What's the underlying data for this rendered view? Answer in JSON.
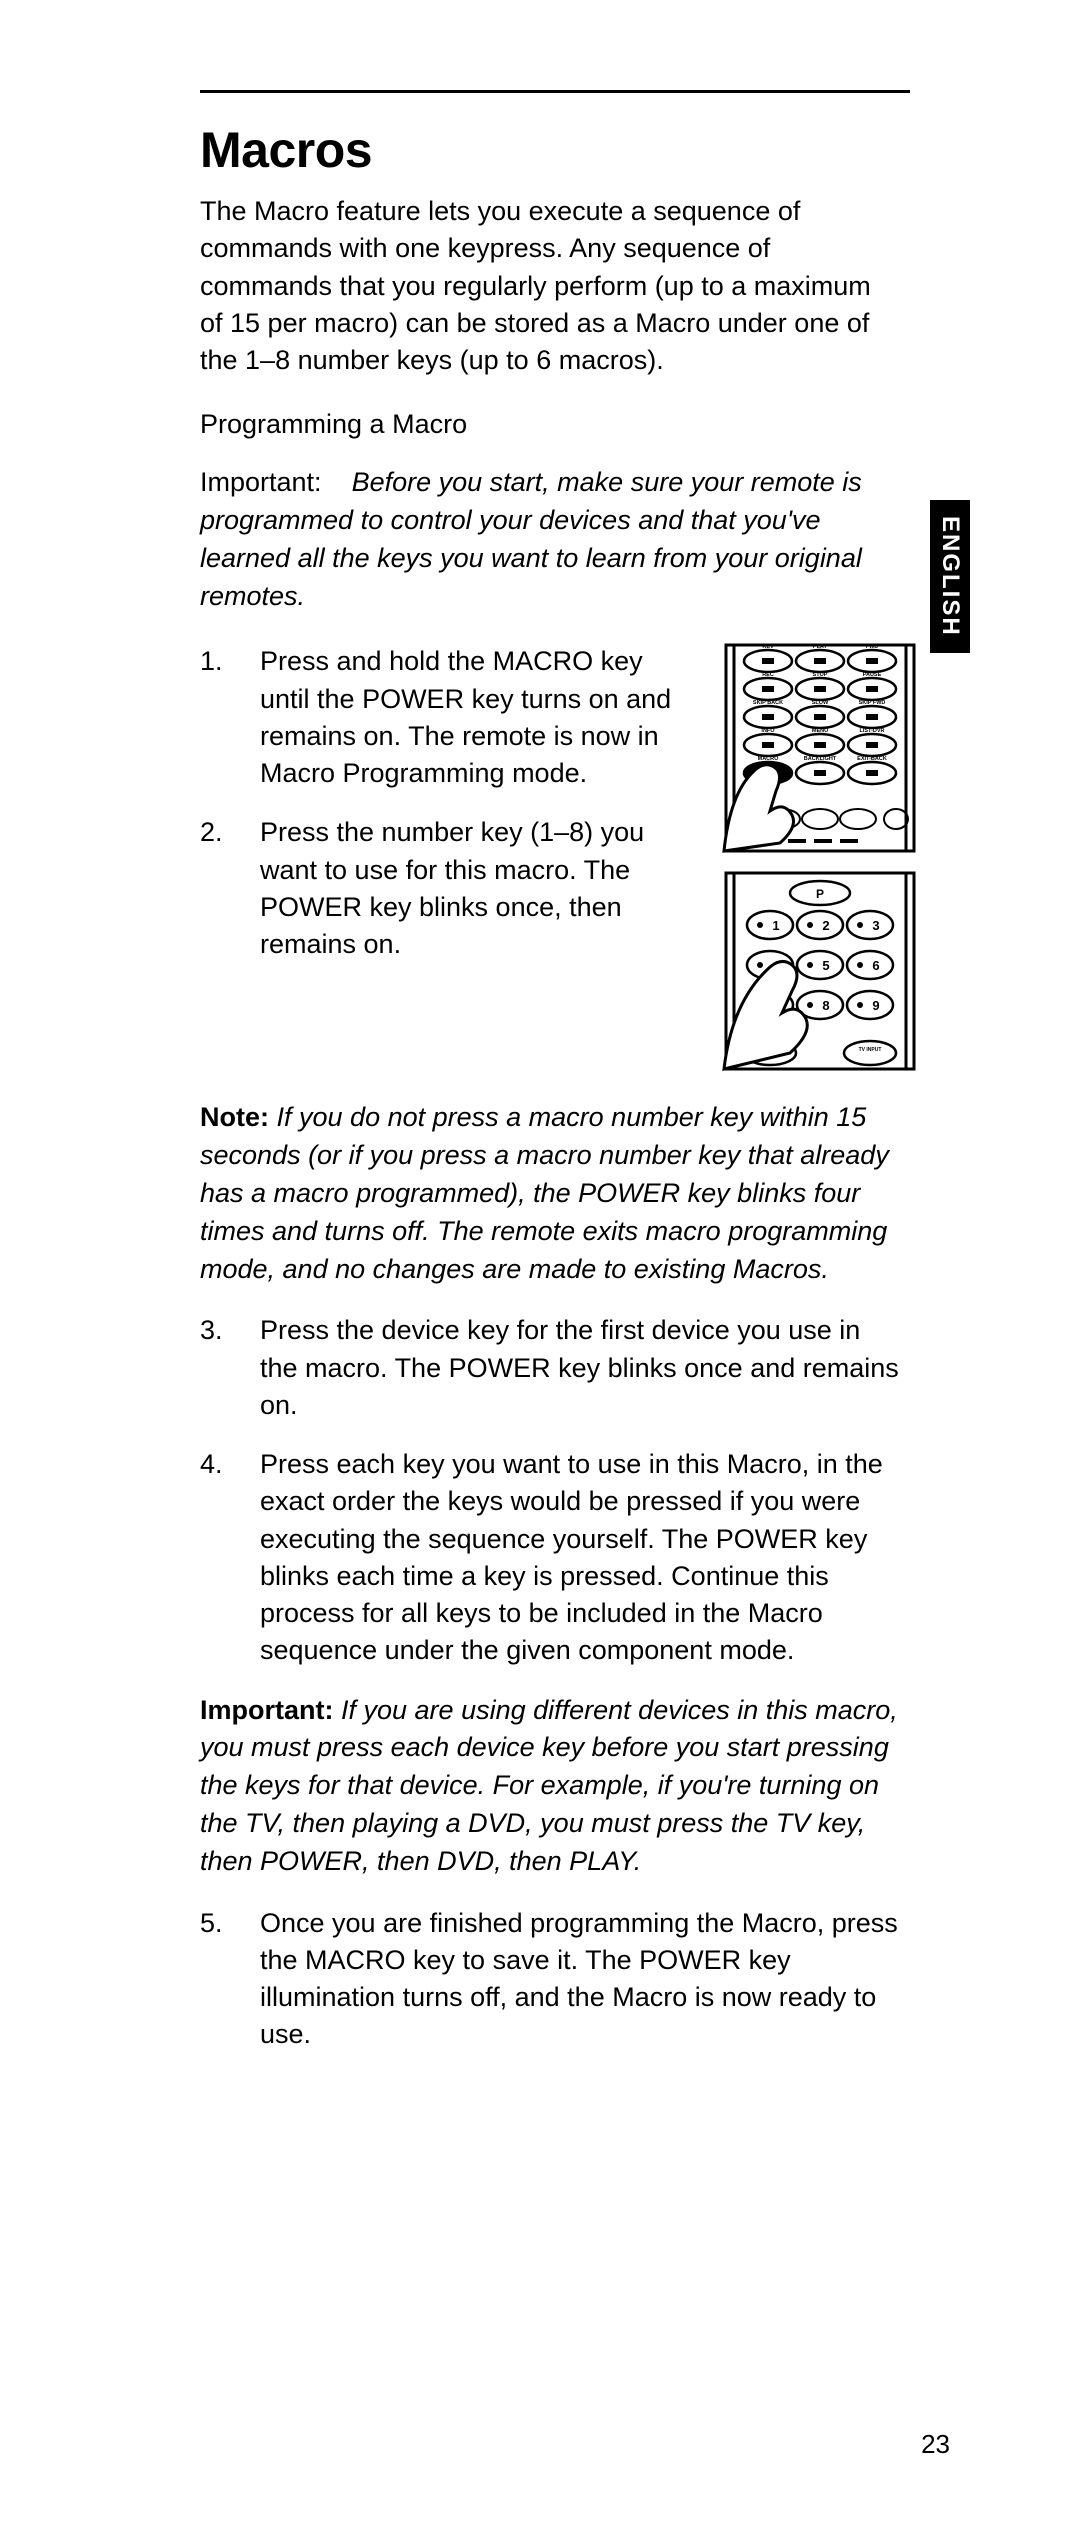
{
  "language_tab": "ENGLISH",
  "page_number": "23",
  "title": "Macros",
  "intro": "The Macro feature lets you execute a sequence of commands with one keypress. Any sequence of commands that you regularly perform (up to a maximum of 15 per macro) can be stored as a Macro under one of the 1–8 number keys (up to 6 macros).",
  "subhead": "Programming a Macro",
  "important1_label": "Important:",
  "important1_text": "Before you start, make sure your remote is programmed to control your devices and that you've learned all the keys you want to learn from your original remotes.",
  "step1": "Press and hold the MACRO key until the POWER key turns on and remains on. The remote is now in Macro Programming mode.",
  "step2": "Press the number key (1–8) you want to use for this macro. The POWER key blinks once, then remains on.",
  "note_label": "Note:",
  "note_text": "If you do not press a macro number key within 15 seconds (or if you press a macro number key that already has a macro programmed), the POWER key blinks four times and turns off. The remote exits macro programming mode, and no changes are made to existing Macros.",
  "step3": "Press the device key for the first device you use in the macro. The POWER key blinks once and remains on.",
  "step4": "Press each key you want to use in this Macro, in the exact order the keys would be pressed if you were executing the sequence yourself. The POWER key blinks each time a key is pressed. Continue this process for all keys to be included in the Macro sequence under the given component mode.",
  "important2_label": "Important:",
  "important2_text": "If you are using different devices in this macro, you must press each device key before you start pressing the keys for that device. For example, if you're turning on the TV, then playing a DVD, you must press the TV key, then POWER, then DVD, then PLAY.",
  "step5": "Once you are finished programming the Macro, press the MACRO key to save it. The POWER key illumination turns off, and the Macro is now ready to use.",
  "fig1": {
    "row1": [
      "REV",
      "PLAY",
      "FWD"
    ],
    "row2": [
      "REC",
      "STOP",
      "PAUSE"
    ],
    "row3": [
      "SKIP BACK",
      "SLOW",
      "SKIP FWD"
    ],
    "row4": [
      "INFO",
      "MENU",
      "LIST-DVR"
    ],
    "row5": [
      "MACRO",
      "BACKLIGHT",
      "EXIT-BACK"
    ],
    "highlight_row": 5,
    "highlight_col": 0
  },
  "fig2": {
    "top_key": "P",
    "keys": [
      "1",
      "2",
      "3",
      "4",
      "5",
      "6",
      "7",
      "8",
      "9"
    ],
    "bottom": [
      "INPUT",
      "0",
      "TV INPUT"
    ]
  },
  "colors": {
    "black": "#000000",
    "white": "#ffffff"
  }
}
